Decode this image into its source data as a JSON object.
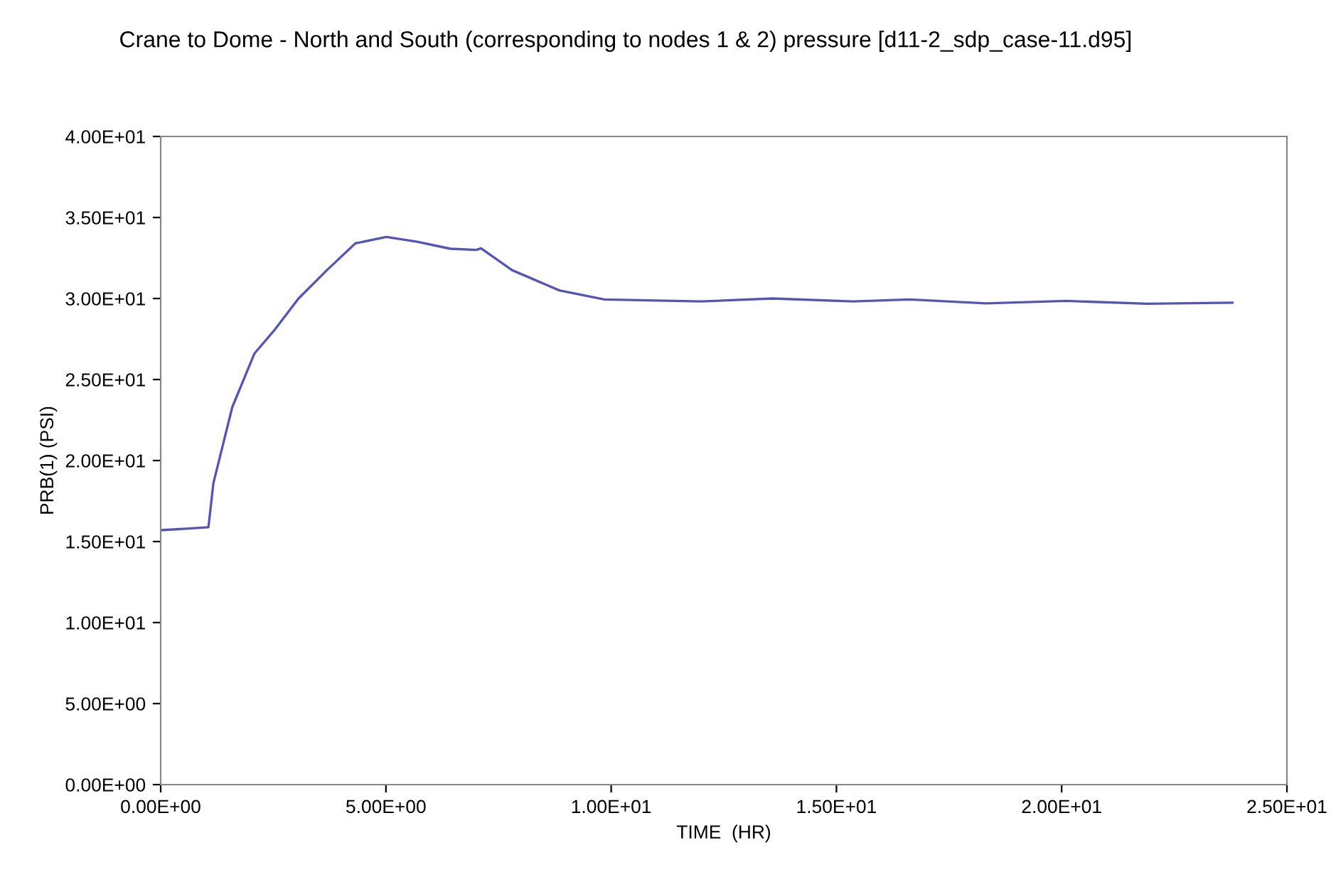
{
  "chart_data": {
    "type": "line",
    "title": "Crane to Dome - North and South (corresponding to nodes 1 & 2) pressure [d11-2_sdp_case-11.d95]",
    "xlabel": "TIME  (HR)",
    "ylabel": "PRB(1) (PSI)",
    "series": [
      {
        "color": "#5555b5",
        "x": [
          0,
          1.06,
          1.17,
          1.59,
          2.08,
          2.54,
          3.06,
          3.69,
          4.32,
          5.01,
          5.69,
          6.43,
          7.01,
          7.11,
          7.8,
          8.85,
          9.85,
          12.0,
          13.58,
          15.37,
          16.63,
          18.32,
          20.1,
          21.9,
          23.79
        ],
        "values": [
          15.7,
          15.88,
          18.6,
          23.3,
          26.6,
          28.1,
          30.0,
          31.75,
          33.4,
          33.8,
          33.5,
          33.07,
          33.0,
          33.1,
          31.75,
          30.5,
          29.94,
          29.82,
          30.0,
          29.82,
          29.94,
          29.7,
          29.85,
          29.68,
          29.74
        ]
      }
    ],
    "xlim": [
      0,
      25
    ],
    "xticks": [
      {
        "value": 0,
        "label": "0.00E+00"
      },
      {
        "value": 5,
        "label": "5.00E+00"
      },
      {
        "value": 10,
        "label": "1.00E+01"
      },
      {
        "value": 15,
        "label": "1.50E+01"
      },
      {
        "value": 20,
        "label": "2.00E+01"
      },
      {
        "value": 25,
        "label": "2.50E+01"
      }
    ],
    "ylim": [
      0,
      40
    ],
    "yticks": [
      {
        "value": 0,
        "label": "0.00E+00"
      },
      {
        "value": 5,
        "label": "5.00E+00"
      },
      {
        "value": 10,
        "label": "1.00E+01"
      },
      {
        "value": 15,
        "label": "1.50E+01"
      },
      {
        "value": 20,
        "label": "2.00E+01"
      },
      {
        "value": 25,
        "label": "2.50E+01"
      },
      {
        "value": 30,
        "label": "3.00E+01"
      },
      {
        "value": 35,
        "label": "3.50E+01"
      },
      {
        "value": 40,
        "label": "4.00E+01"
      }
    ],
    "grid": false,
    "legend": false
  }
}
